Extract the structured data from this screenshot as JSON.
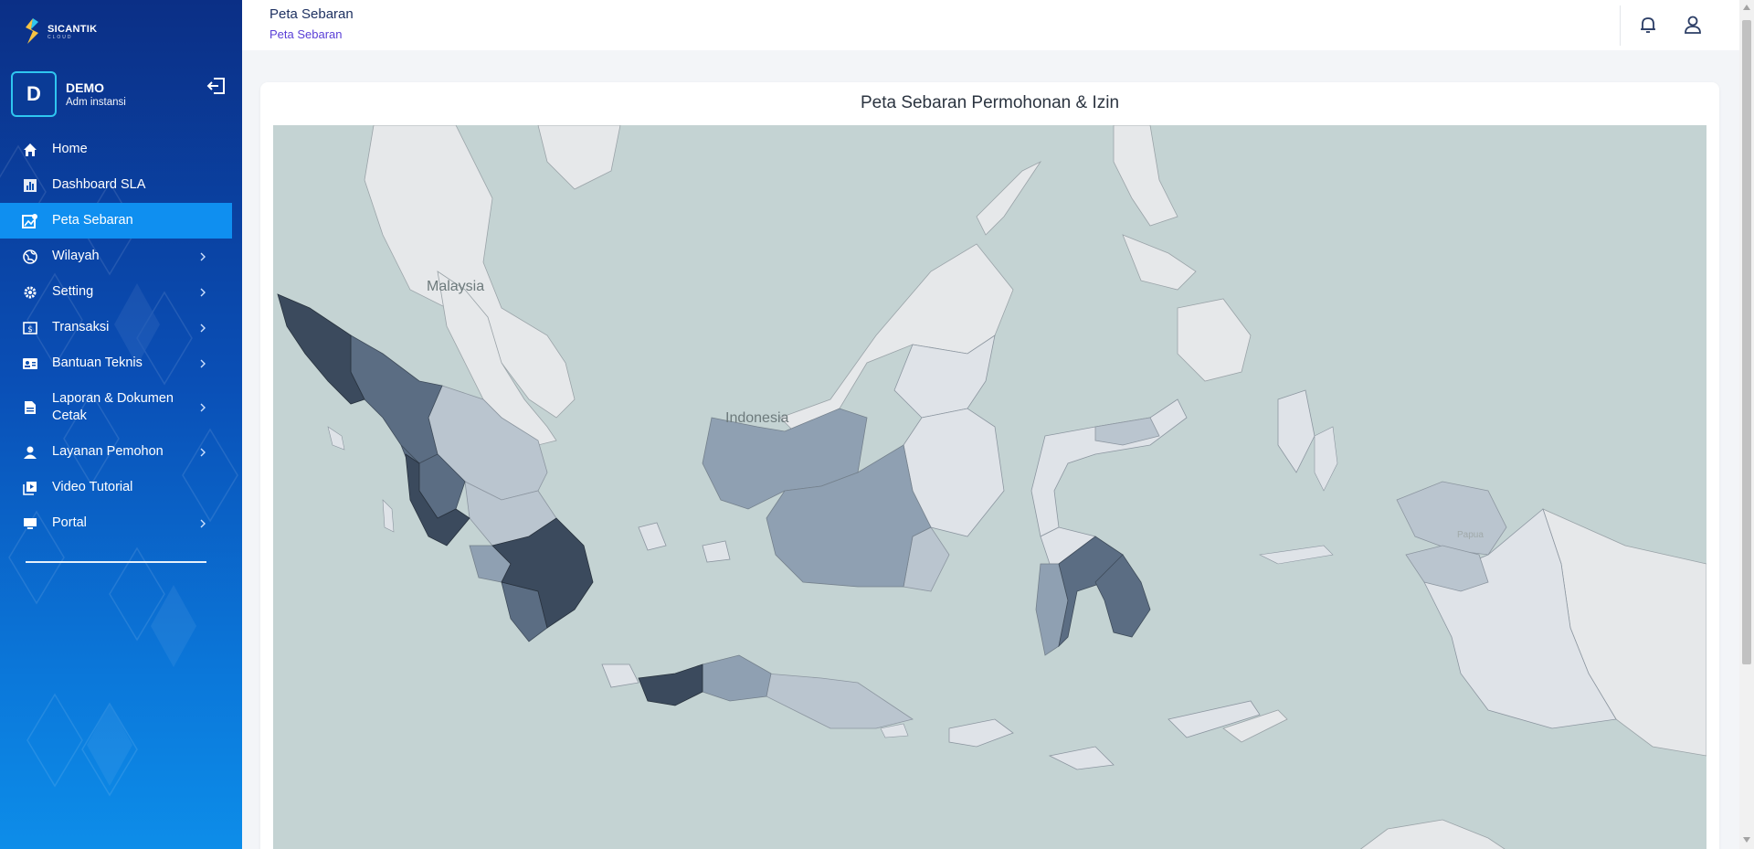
{
  "app": {
    "logo_text": "SICANTIK",
    "logo_sub": "CLOUD"
  },
  "profile": {
    "initial": "D",
    "name": "DEMO",
    "role": "Adm instansi"
  },
  "sidebar": {
    "items": [
      {
        "label": "Home",
        "icon": "home-icon",
        "has_submenu": false,
        "active": false
      },
      {
        "label": "Dashboard SLA",
        "icon": "chart-bar-icon",
        "has_submenu": false,
        "active": false
      },
      {
        "label": "Peta Sebaran",
        "icon": "map-icon",
        "has_submenu": false,
        "active": true
      },
      {
        "label": "Wilayah",
        "icon": "globe-icon",
        "has_submenu": true,
        "active": false
      },
      {
        "label": "Setting",
        "icon": "gear-icon",
        "has_submenu": true,
        "active": false
      },
      {
        "label": "Transaksi",
        "icon": "dollar-icon",
        "has_submenu": true,
        "active": false
      },
      {
        "label": "Bantuan Teknis",
        "icon": "contact-card-icon",
        "has_submenu": true,
        "active": false
      },
      {
        "label": "Laporan & Dokumen Cetak",
        "icon": "document-icon",
        "has_submenu": true,
        "active": false
      },
      {
        "label": "Layanan Pemohon",
        "icon": "person-icon",
        "has_submenu": true,
        "active": false
      },
      {
        "label": "Video Tutorial",
        "icon": "video-library-icon",
        "has_submenu": false,
        "active": false
      },
      {
        "label": "Portal",
        "icon": "monitor-icon",
        "has_submenu": true,
        "active": false
      }
    ]
  },
  "header": {
    "title": "Peta Sebaran",
    "breadcrumb": "Peta Sebaran"
  },
  "card": {
    "title": "Peta Sebaran Permohonan & Izin"
  },
  "map": {
    "labels": {
      "malaysia": "Malaysia",
      "indonesia": "Indonesia",
      "papua": "Papua"
    },
    "colors": {
      "sea": "#c4d3d3",
      "foreign_land": "#e6e8ea",
      "level_1": "#dfe3e8",
      "level_2": "#bac5cf",
      "level_3": "#8fa0b2",
      "level_4": "#5b6d83",
      "level_5": "#3b4a5d"
    }
  },
  "colors": {
    "sidebar_top": "#0b2f86",
    "sidebar_bottom": "#0d8de9",
    "active_item": "#0f8ff0",
    "breadcrumb": "#5a3fd6"
  }
}
